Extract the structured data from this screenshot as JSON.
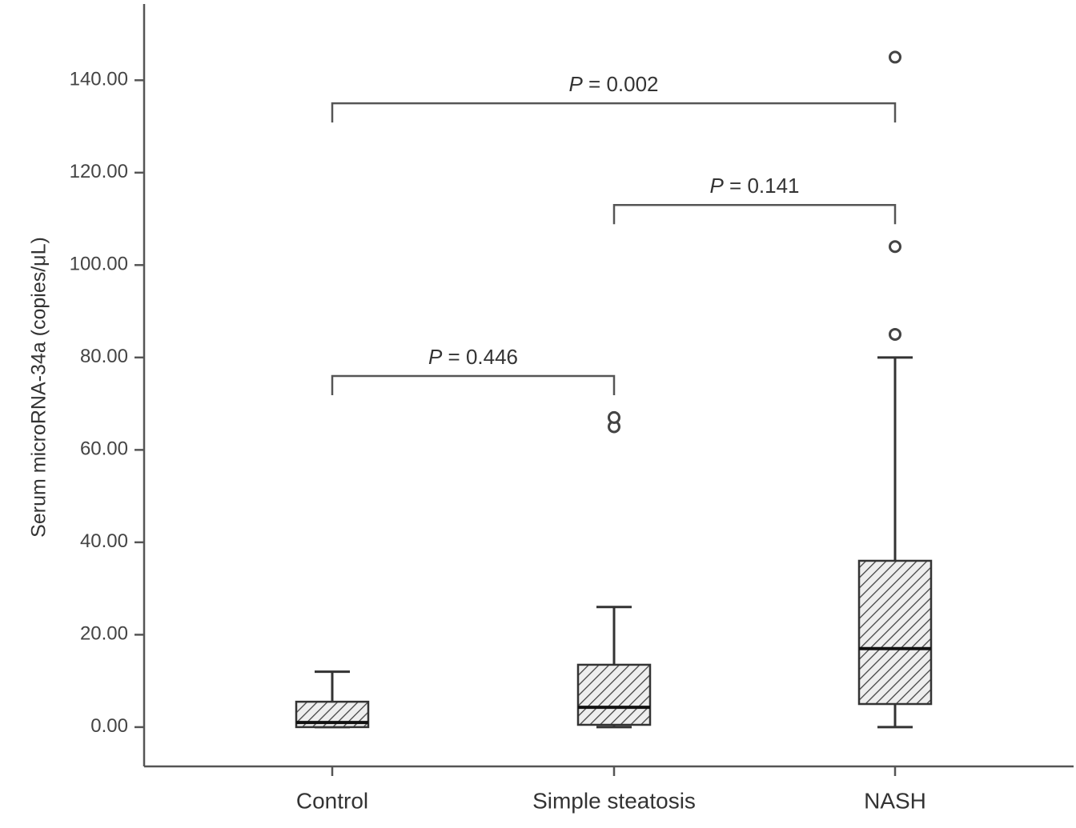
{
  "chart_data": {
    "type": "box",
    "ylabel": "Serum microRNA-34a (copies/μL)",
    "xlabel": "",
    "ylim": [
      -8.5,
      156.5
    ],
    "yticks": [
      "0.00",
      "20.00",
      "40.00",
      "60.00",
      "80.00",
      "100.00",
      "120.00",
      "140.00"
    ],
    "yticks_values": [
      0,
      20,
      40,
      60,
      80,
      100,
      120,
      140
    ],
    "categories": [
      "Control",
      "Simple steatosis",
      "NASH"
    ],
    "boxes": [
      {
        "category": "Control",
        "min": 0,
        "q1": 0,
        "median": 1,
        "q3": 5.5,
        "max": 12,
        "outliers": []
      },
      {
        "category": "Simple steatosis",
        "min": 0,
        "q1": 0.5,
        "median": 4.3,
        "q3": 13.5,
        "max": 26,
        "outliers": [
          65,
          67
        ]
      },
      {
        "category": "NASH",
        "min": 0,
        "q1": 5,
        "median": 17,
        "q3": 36,
        "max": 80,
        "outliers": [
          85,
          104,
          145
        ]
      }
    ],
    "comparisons": [
      {
        "from": "Control",
        "to": "Simple steatosis",
        "p_symbol": "P",
        "p_text": " = 0.446",
        "y": 76
      },
      {
        "from": "Simple steatosis",
        "to": "NASH",
        "p_symbol": "P",
        "p_text": " = 0.141",
        "y": 113
      },
      {
        "from": "Control",
        "to": "NASH",
        "p_symbol": "P",
        "p_text": " = 0.002",
        "y": 135
      }
    ],
    "colors": {
      "axis": "#555555",
      "box_stroke": "#333333",
      "hatch": "#444444",
      "box_fill": "#eeeeee"
    }
  }
}
